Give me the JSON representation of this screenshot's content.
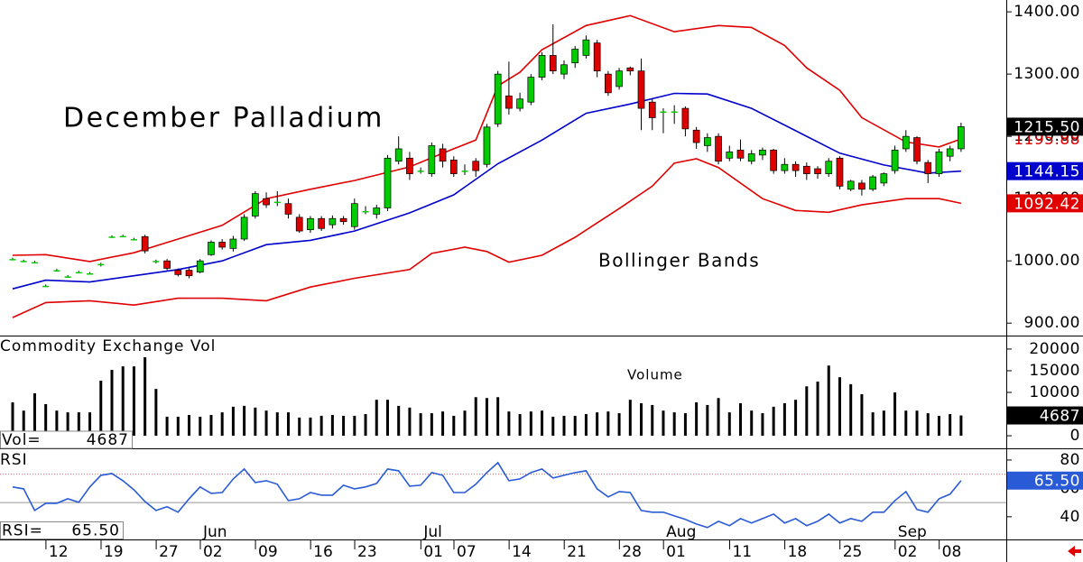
{
  "chart_data": [
    {
      "type": "candlestick",
      "title": "December Palladium",
      "annotation": "Bollinger Bands",
      "ylim": [
        880,
        1419
      ],
      "yticks": [
        {
          "value": 900,
          "label": "900.00"
        },
        {
          "value": 1000,
          "label": "1000.00"
        },
        {
          "value": 1100,
          "label": "1100.00"
        },
        {
          "value": 1200,
          "label": "1200.00"
        },
        {
          "value": 1300,
          "label": "1300.00"
        },
        {
          "value": 1400,
          "label": "1400.00"
        }
      ],
      "up_color": "#00cc00",
      "down_color": "#dd0000",
      "open": [
        1003,
        1000,
        998,
        960,
        985,
        975,
        982,
        980,
        993,
        1039,
        1040,
        1035,
        1039,
        998,
        1000,
        985,
        985,
        982,
        1010,
        1030,
        1020,
        1035,
        1072,
        1100,
        1095,
        1092,
        1070,
        1050,
        1068,
        1058,
        1068,
        1055,
        1080,
        1075,
        1085,
        1160,
        1165,
        1145,
        1140,
        1180,
        1162,
        1145,
        1160,
        1155,
        1220,
        1265,
        1245,
        1255,
        1295,
        1330,
        1300,
        1318,
        1330,
        1350,
        1300,
        1280,
        1310,
        1305,
        1255,
        1240,
        1240,
        1245,
        1210,
        1185,
        1200,
        1165,
        1178,
        1160,
        1170,
        1178,
        1145,
        1155,
        1152,
        1148,
        1140,
        1165,
        1115,
        1125,
        1115,
        1125,
        1145,
        1180,
        1198,
        1158,
        1140,
        1168,
        1180
      ],
      "high": [
        1005,
        1002,
        1000,
        962,
        987,
        977,
        984,
        982,
        997,
        1041,
        1042,
        1037,
        1042,
        1002,
        1003,
        988,
        990,
        1003,
        1033,
        1035,
        1040,
        1075,
        1112,
        1110,
        1112,
        1100,
        1075,
        1072,
        1072,
        1073,
        1072,
        1100,
        1088,
        1090,
        1170,
        1200,
        1175,
        1150,
        1190,
        1188,
        1168,
        1155,
        1165,
        1220,
        1305,
        1320,
        1270,
        1300,
        1335,
        1380,
        1322,
        1345,
        1362,
        1355,
        1305,
        1310,
        1312,
        1325,
        1260,
        1245,
        1250,
        1248,
        1215,
        1205,
        1205,
        1185,
        1195,
        1178,
        1182,
        1180,
        1165,
        1160,
        1158,
        1152,
        1165,
        1168,
        1130,
        1130,
        1138,
        1142,
        1185,
        1210,
        1200,
        1162,
        1180,
        1185,
        1222
      ],
      "low": [
        1001,
        998,
        996,
        958,
        983,
        973,
        980,
        978,
        991,
        1037,
        1038,
        1033,
        1012,
        996,
        985,
        975,
        972,
        980,
        1008,
        1018,
        1015,
        1032,
        1068,
        1085,
        1088,
        1068,
        1045,
        1045,
        1048,
        1052,
        1058,
        1050,
        1075,
        1068,
        1080,
        1155,
        1130,
        1140,
        1135,
        1150,
        1135,
        1138,
        1135,
        1150,
        1215,
        1235,
        1240,
        1250,
        1290,
        1300,
        1292,
        1310,
        1325,
        1295,
        1265,
        1275,
        1298,
        1210,
        1210,
        1205,
        1220,
        1200,
        1180,
        1175,
        1155,
        1160,
        1160,
        1155,
        1162,
        1140,
        1140,
        1135,
        1130,
        1132,
        1135,
        1115,
        1112,
        1105,
        1112,
        1120,
        1140,
        1175,
        1155,
        1125,
        1135,
        1160,
        1175
      ],
      "close": [
        1003,
        1000,
        998,
        960,
        985,
        975,
        982,
        980,
        995,
        1039,
        1040,
        1035,
        1016,
        1000,
        988,
        978,
        976,
        1000,
        1030,
        1022,
        1035,
        1070,
        1108,
        1090,
        1095,
        1075,
        1048,
        1068,
        1052,
        1068,
        1063,
        1092,
        1080,
        1085,
        1165,
        1180,
        1140,
        1145,
        1185,
        1160,
        1140,
        1145,
        1145,
        1215,
        1300,
        1245,
        1260,
        1295,
        1330,
        1305,
        1315,
        1340,
        1355,
        1305,
        1270,
        1305,
        1305,
        1245,
        1230,
        1240,
        1240,
        1212,
        1190,
        1198,
        1160,
        1175,
        1165,
        1172,
        1178,
        1145,
        1155,
        1145,
        1140,
        1140,
        1160,
        1120,
        1128,
        1115,
        1135,
        1140,
        1178,
        1200,
        1160,
        1140,
        1175,
        1180,
        1215.5
      ],
      "value_labels": [
        null,
        null,
        null,
        null,
        null,
        null,
        null,
        null,
        null,
        null,
        null,
        null,
        null,
        null,
        null,
        null,
        null,
        null,
        null,
        null,
        null,
        null,
        null,
        null,
        null,
        null,
        null,
        null,
        null,
        null,
        null,
        null,
        null,
        null,
        null,
        null,
        null,
        null,
        null,
        null,
        null,
        null,
        null,
        null,
        null,
        null,
        null,
        null,
        null,
        null,
        null,
        null,
        null,
        null,
        null,
        null,
        null,
        null,
        null,
        null,
        null,
        null,
        null,
        null,
        null,
        null,
        null,
        null,
        null,
        null,
        null,
        null,
        null,
        null,
        null,
        null,
        null,
        null,
        null,
        null,
        null,
        null,
        null,
        null,
        null,
        null,
        "1215.50"
      ],
      "bands": [
        {
          "color": "#e00000",
          "x": [
            0,
            3,
            7,
            11,
            15,
            19,
            23,
            27,
            31,
            36,
            40,
            42,
            44,
            46,
            48,
            52,
            56,
            60,
            64,
            67,
            70,
            72,
            75,
            77,
            81,
            84,
            86
          ],
          "values": [
            1009,
            1010,
            999,
            1013,
            1035,
            1057,
            1100,
            1115,
            1129,
            1151,
            1180,
            1194,
            1281,
            1303,
            1339,
            1378,
            1394,
            1368,
            1378,
            1375,
            1346,
            1310,
            1274,
            1230,
            1191,
            1183,
            1195.88
          ]
        },
        {
          "color": "#0000cc",
          "x": [
            0,
            3,
            7,
            11,
            15,
            19,
            23,
            27,
            31,
            36,
            40,
            44,
            48,
            52,
            56,
            60,
            63,
            67,
            71,
            75,
            79,
            83,
            86
          ],
          "values": [
            955,
            969,
            966,
            976,
            986,
            1000,
            1026,
            1033,
            1048,
            1077,
            1106,
            1156,
            1194,
            1237,
            1252,
            1269,
            1268,
            1245,
            1209,
            1173,
            1154,
            1141,
            1144.15
          ]
        },
        {
          "color": "#e00000",
          "x": [
            0,
            3,
            7,
            11,
            15,
            19,
            23,
            27,
            31,
            36,
            38,
            41,
            43,
            45,
            48,
            51,
            55,
            58,
            60,
            62,
            64,
            68,
            71,
            74,
            77,
            81,
            84,
            86
          ],
          "values": [
            909,
            933,
            936,
            929,
            940,
            940,
            936,
            958,
            972,
            986,
            1012,
            1022,
            1015,
            998,
            1009,
            1038,
            1084,
            1120,
            1157,
            1164,
            1150,
            1100,
            1081,
            1078,
            1090,
            1100,
            1100,
            1092.42
          ]
        }
      ]
    },
    {
      "type": "bar",
      "title": "Commodity Exchange Vol",
      "annotation": "Volume",
      "readout_label": "Vol=",
      "color": "#000000",
      "ylim": [
        -2900,
        22900
      ],
      "yticks": [
        0,
        5000,
        10000,
        15000,
        20000
      ],
      "values": [
        7700,
        5800,
        9800,
        7300,
        5800,
        5400,
        5400,
        5400,
        12700,
        15200,
        16000,
        16000,
        18100,
        10800,
        4400,
        4400,
        4800,
        4400,
        4800,
        5400,
        6700,
        6900,
        6500,
        5800,
        5400,
        5400,
        4200,
        4200,
        4600,
        4800,
        4600,
        4600,
        5000,
        8300,
        8300,
        6900,
        6500,
        5200,
        5200,
        5600,
        4600,
        5800,
        8900,
        8700,
        8900,
        5600,
        5000,
        5600,
        5800,
        4400,
        4600,
        4600,
        5000,
        5400,
        5600,
        5200,
        8300,
        7500,
        7100,
        5800,
        5400,
        5200,
        7700,
        7100,
        8700,
        5400,
        7500,
        5800,
        5200,
        6700,
        7500,
        8300,
        11400,
        12500,
        16200,
        13500,
        11900,
        9600,
        5400,
        5800,
        10000,
        5800,
        5800,
        5200,
        4600,
        5000,
        4687
      ]
    },
    {
      "type": "line",
      "title": "RSI",
      "readout_label": "RSI=",
      "color": "#2a5bd7",
      "ylim": [
        24,
        87.6
      ],
      "yticks": [
        40,
        60,
        80
      ],
      "levels": [
        {
          "value": 70,
          "color": "#e06060"
        },
        {
          "value": 50,
          "color": "#999999"
        }
      ],
      "values": [
        61.0,
        59.7,
        44.4,
        49.5,
        49.5,
        52.7,
        50.2,
        61.0,
        69.2,
        70.5,
        65.4,
        59.0,
        50.8,
        44.4,
        47.0,
        43.2,
        52.7,
        61.0,
        56.5,
        57.1,
        66.7,
        73.7,
        64.1,
        65.4,
        62.9,
        51.4,
        52.7,
        57.1,
        55.2,
        55.2,
        62.2,
        59.7,
        61.0,
        63.5,
        73.7,
        72.4,
        61.6,
        62.2,
        71.1,
        69.2,
        57.1,
        57.1,
        62.9,
        71.1,
        78.1,
        65.4,
        66.7,
        71.1,
        73.7,
        67.3,
        69.2,
        71.1,
        72.4,
        59.7,
        54.0,
        57.8,
        57.1,
        44.4,
        43.2,
        43.2,
        40.6,
        38.1,
        34.9,
        32.4,
        36.8,
        33.7,
        38.7,
        35.6,
        38.7,
        41.9,
        35.6,
        38.7,
        33.7,
        36.8,
        41.9,
        35.6,
        38.7,
        36.8,
        43.2,
        43.2,
        51.4,
        57.8,
        45.1,
        43.2,
        52.7,
        55.9,
        65.5
      ],
      "value_labels": [
        null,
        null,
        null,
        null,
        null,
        null,
        null,
        null,
        null,
        null,
        null,
        null,
        null,
        null,
        null,
        null,
        null,
        null,
        null,
        null,
        null,
        null,
        null,
        null,
        null,
        null,
        null,
        null,
        null,
        null,
        null,
        null,
        null,
        null,
        null,
        null,
        null,
        null,
        null,
        null,
        null,
        null,
        null,
        null,
        null,
        null,
        null,
        null,
        null,
        null,
        null,
        null,
        null,
        null,
        null,
        null,
        null,
        null,
        null,
        null,
        null,
        null,
        null,
        null,
        null,
        null,
        null,
        null,
        null,
        null,
        null,
        null,
        null,
        null,
        null,
        null,
        null,
        null,
        null,
        null,
        null,
        null,
        null,
        null,
        null,
        null,
        "65.50"
      ],
      "categories": [
        null,
        null,
        null,
        null,
        "12",
        null,
        null,
        null,
        null,
        "19",
        null,
        null,
        null,
        null,
        "27",
        null,
        null,
        null,
        "02",
        null,
        null,
        null,
        null,
        "09",
        null,
        null,
        null,
        null,
        "16",
        null,
        null,
        null,
        "23",
        null,
        null,
        null,
        null,
        null,
        "01",
        null,
        null,
        "07",
        null,
        null,
        null,
        null,
        "14",
        null,
        null,
        null,
        null,
        "21",
        null,
        null,
        null,
        null,
        "28",
        null,
        null,
        null,
        "01",
        null,
        null,
        null,
        null,
        null,
        "11",
        null,
        null,
        null,
        null,
        "18",
        null,
        null,
        null,
        null,
        "25",
        null,
        null,
        null,
        null,
        "02",
        null,
        null,
        null,
        "08",
        null
      ],
      "months": [
        {
          "label": "Jun",
          "index": 18
        },
        {
          "label": "Jul",
          "index": 38
        },
        {
          "label": "Aug",
          "index": 60
        },
        {
          "label": "Sep",
          "index": 81
        }
      ]
    }
  ]
}
